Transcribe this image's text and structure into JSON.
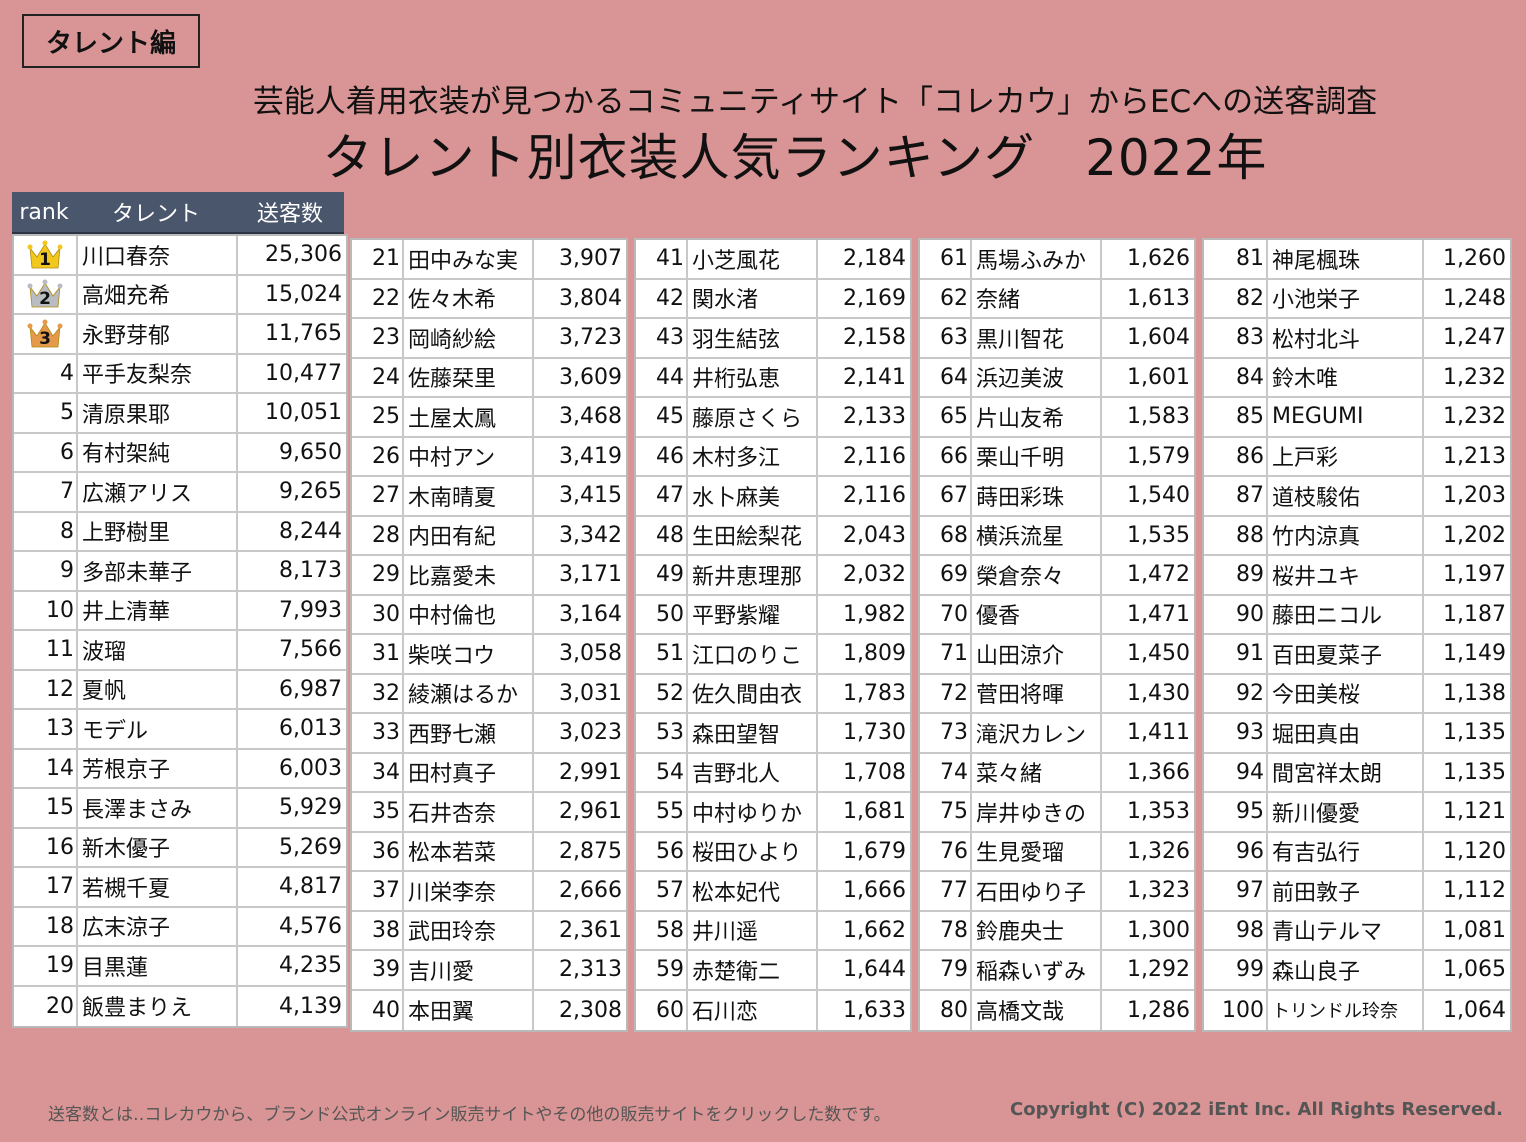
{
  "badge": "タレント編",
  "subtitle": "芸能人着用衣装が見つかるコミュニティサイト「コレカウ」からECへの送客調査",
  "title": "タレント別衣装人気ランキング",
  "title_year": "2022年",
  "header": {
    "rank": "rank",
    "name": "タレント",
    "count": "送客数"
  },
  "top3": [
    {
      "rank": "1",
      "name": "川口春奈",
      "count": "25,306",
      "crown_color": "#f2c81e"
    },
    {
      "rank": "2",
      "name": "高畑充希",
      "count": "15,024",
      "crown_color": "#b9bcc2"
    },
    {
      "rank": "3",
      "name": "永野芽郁",
      "count": "11,765",
      "crown_color": "#e59a4b"
    }
  ],
  "columns": [
    [
      {
        "rank": "4",
        "name": "平手友梨奈",
        "count": "10,477"
      },
      {
        "rank": "5",
        "name": "清原果耶",
        "count": "10,051"
      },
      {
        "rank": "6",
        "name": "有村架純",
        "count": "9,650"
      },
      {
        "rank": "7",
        "name": "広瀬アリス",
        "count": "9,265"
      },
      {
        "rank": "8",
        "name": "上野樹里",
        "count": "8,244"
      },
      {
        "rank": "9",
        "name": "多部未華子",
        "count": "8,173"
      },
      {
        "rank": "10",
        "name": "井上清華",
        "count": "7,993"
      },
      {
        "rank": "11",
        "name": "波瑠",
        "count": "7,566"
      },
      {
        "rank": "12",
        "name": "夏帆",
        "count": "6,987"
      },
      {
        "rank": "13",
        "name": "モデル",
        "count": "6,013"
      },
      {
        "rank": "14",
        "name": "芳根京子",
        "count": "6,003"
      },
      {
        "rank": "15",
        "name": "長澤まさみ",
        "count": "5,929"
      },
      {
        "rank": "16",
        "name": "新木優子",
        "count": "5,269"
      },
      {
        "rank": "17",
        "name": "若槻千夏",
        "count": "4,817"
      },
      {
        "rank": "18",
        "name": "広末涼子",
        "count": "4,576"
      },
      {
        "rank": "19",
        "name": "目黒蓮",
        "count": "4,235"
      },
      {
        "rank": "20",
        "name": "飯豊まりえ",
        "count": "4,139"
      }
    ],
    [
      {
        "rank": "21",
        "name": "田中みな実",
        "count": "3,907"
      },
      {
        "rank": "22",
        "name": "佐々木希",
        "count": "3,804"
      },
      {
        "rank": "23",
        "name": "岡崎紗絵",
        "count": "3,723"
      },
      {
        "rank": "24",
        "name": "佐藤栞里",
        "count": "3,609"
      },
      {
        "rank": "25",
        "name": "土屋太鳳",
        "count": "3,468"
      },
      {
        "rank": "26",
        "name": "中村アン",
        "count": "3,419"
      },
      {
        "rank": "27",
        "name": "木南晴夏",
        "count": "3,415"
      },
      {
        "rank": "28",
        "name": "内田有紀",
        "count": "3,342"
      },
      {
        "rank": "29",
        "name": "比嘉愛未",
        "count": "3,171"
      },
      {
        "rank": "30",
        "name": "中村倫也",
        "count": "3,164"
      },
      {
        "rank": "31",
        "name": "柴咲コウ",
        "count": "3,058"
      },
      {
        "rank": "32",
        "name": "綾瀬はるか",
        "count": "3,031"
      },
      {
        "rank": "33",
        "name": "西野七瀬",
        "count": "3,023"
      },
      {
        "rank": "34",
        "name": "田村真子",
        "count": "2,991"
      },
      {
        "rank": "35",
        "name": "石井杏奈",
        "count": "2,961"
      },
      {
        "rank": "36",
        "name": "松本若菜",
        "count": "2,875"
      },
      {
        "rank": "37",
        "name": "川栄李奈",
        "count": "2,666"
      },
      {
        "rank": "38",
        "name": "武田玲奈",
        "count": "2,361"
      },
      {
        "rank": "39",
        "name": "吉川愛",
        "count": "2,313"
      },
      {
        "rank": "40",
        "name": "本田翼",
        "count": "2,308"
      }
    ],
    [
      {
        "rank": "41",
        "name": "小芝風花",
        "count": "2,184"
      },
      {
        "rank": "42",
        "name": "関水渚",
        "count": "2,169"
      },
      {
        "rank": "43",
        "name": "羽生結弦",
        "count": "2,158"
      },
      {
        "rank": "44",
        "name": "井桁弘恵",
        "count": "2,141"
      },
      {
        "rank": "45",
        "name": "藤原さくら",
        "count": "2,133"
      },
      {
        "rank": "46",
        "name": "木村多江",
        "count": "2,116"
      },
      {
        "rank": "47",
        "name": "水卜麻美",
        "count": "2,116"
      },
      {
        "rank": "48",
        "name": "生田絵梨花",
        "count": "2,043"
      },
      {
        "rank": "49",
        "name": "新井恵理那",
        "count": "2,032"
      },
      {
        "rank": "50",
        "name": "平野紫耀",
        "count": "1,982"
      },
      {
        "rank": "51",
        "name": "江口のりこ",
        "count": "1,809"
      },
      {
        "rank": "52",
        "name": "佐久間由衣",
        "count": "1,783"
      },
      {
        "rank": "53",
        "name": "森田望智",
        "count": "1,730"
      },
      {
        "rank": "54",
        "name": "吉野北人",
        "count": "1,708"
      },
      {
        "rank": "55",
        "name": "中村ゆりか",
        "count": "1,681"
      },
      {
        "rank": "56",
        "name": "桜田ひより",
        "count": "1,679"
      },
      {
        "rank": "57",
        "name": "松本妃代",
        "count": "1,666"
      },
      {
        "rank": "58",
        "name": "井川遥",
        "count": "1,662"
      },
      {
        "rank": "59",
        "name": "赤楚衛二",
        "count": "1,644"
      },
      {
        "rank": "60",
        "name": "石川恋",
        "count": "1,633"
      }
    ],
    [
      {
        "rank": "61",
        "name": "馬場ふみか",
        "count": "1,626"
      },
      {
        "rank": "62",
        "name": "奈緒",
        "count": "1,613"
      },
      {
        "rank": "63",
        "name": "黒川智花",
        "count": "1,604"
      },
      {
        "rank": "64",
        "name": "浜辺美波",
        "count": "1,601"
      },
      {
        "rank": "65",
        "name": "片山友希",
        "count": "1,583"
      },
      {
        "rank": "66",
        "name": "栗山千明",
        "count": "1,579"
      },
      {
        "rank": "67",
        "name": "蒔田彩珠",
        "count": "1,540"
      },
      {
        "rank": "68",
        "name": "横浜流星",
        "count": "1,535"
      },
      {
        "rank": "69",
        "name": "榮倉奈々",
        "count": "1,472"
      },
      {
        "rank": "70",
        "name": "優香",
        "count": "1,471"
      },
      {
        "rank": "71",
        "name": "山田涼介",
        "count": "1,450"
      },
      {
        "rank": "72",
        "name": "菅田将暉",
        "count": "1,430"
      },
      {
        "rank": "73",
        "name": "滝沢カレン",
        "count": "1,411"
      },
      {
        "rank": "74",
        "name": "菜々緒",
        "count": "1,366"
      },
      {
        "rank": "75",
        "name": "岸井ゆきの",
        "count": "1,353"
      },
      {
        "rank": "76",
        "name": "生見愛瑠",
        "count": "1,326"
      },
      {
        "rank": "77",
        "name": "石田ゆり子",
        "count": "1,323"
      },
      {
        "rank": "78",
        "name": "鈴鹿央士",
        "count": "1,300"
      },
      {
        "rank": "79",
        "name": "稲森いずみ",
        "count": "1,292"
      },
      {
        "rank": "80",
        "name": "高橋文哉",
        "count": "1,286"
      }
    ],
    [
      {
        "rank": "81",
        "name": "神尾楓珠",
        "count": "1,260"
      },
      {
        "rank": "82",
        "name": "小池栄子",
        "count": "1,248"
      },
      {
        "rank": "83",
        "name": "松村北斗",
        "count": "1,247"
      },
      {
        "rank": "84",
        "name": "鈴木唯",
        "count": "1,232"
      },
      {
        "rank": "85",
        "name": "MEGUMI",
        "count": "1,232"
      },
      {
        "rank": "86",
        "name": "上戸彩",
        "count": "1,213"
      },
      {
        "rank": "87",
        "name": "道枝駿佑",
        "count": "1,203"
      },
      {
        "rank": "88",
        "name": "竹内涼真",
        "count": "1,202"
      },
      {
        "rank": "89",
        "name": "桜井ユキ",
        "count": "1,197"
      },
      {
        "rank": "90",
        "name": "藤田ニコル",
        "count": "1,187"
      },
      {
        "rank": "91",
        "name": "百田夏菜子",
        "count": "1,149"
      },
      {
        "rank": "92",
        "name": "今田美桜",
        "count": "1,138"
      },
      {
        "rank": "93",
        "name": "堀田真由",
        "count": "1,135"
      },
      {
        "rank": "94",
        "name": "間宮祥太朗",
        "count": "1,135"
      },
      {
        "rank": "95",
        "name": "新川優愛",
        "count": "1,121"
      },
      {
        "rank": "96",
        "name": "有吉弘行",
        "count": "1,120"
      },
      {
        "rank": "97",
        "name": "前田敦子",
        "count": "1,112"
      },
      {
        "rank": "98",
        "name": "青山テルマ",
        "count": "1,081"
      },
      {
        "rank": "99",
        "name": "森山良子",
        "count": "1,065"
      },
      {
        "rank": "100",
        "name": "トリンドル玲奈",
        "count": "1,064"
      }
    ]
  ],
  "footer_note": "送客数とは‥コレカウから、ブランド公式オンライン販売サイトやその他の販売サイトをクリックした数です。",
  "footer_copyright": "Copyright (C) 2022 iEnt Inc. All Rights Reserved."
}
